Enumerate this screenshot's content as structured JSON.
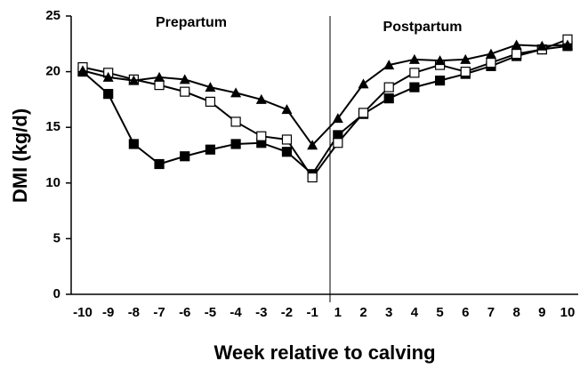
{
  "chart_data": {
    "type": "line",
    "x_label": "Week relative to calving",
    "y_label": "DMI (kg/d)",
    "annotations": [
      "Prepartum",
      "Postpartum"
    ],
    "categories": [
      "-10",
      "-9",
      "-8",
      "-7",
      "-6",
      "-5",
      "-4",
      "-3",
      "-2",
      "-1",
      "1",
      "2",
      "3",
      "4",
      "5",
      "6",
      "7",
      "8",
      "9",
      "10"
    ],
    "series": [
      {
        "color": "#000000",
        "marker": "square",
        "values": [
          20.0,
          18.0,
          13.5,
          11.7,
          12.4,
          13.0,
          13.5,
          13.6,
          12.8,
          10.8,
          14.3,
          16.2,
          17.6,
          18.6,
          19.2,
          19.8,
          20.5,
          21.4,
          22.0,
          22.3
        ]
      },
      {
        "color": "#000000",
        "marker": "square-open",
        "values": [
          20.4,
          19.9,
          19.3,
          18.8,
          18.2,
          17.3,
          15.5,
          14.2,
          13.9,
          10.5,
          13.6,
          16.3,
          18.6,
          19.9,
          20.6,
          20.0,
          20.8,
          21.6,
          22.0,
          22.9
        ]
      },
      {
        "color": "#000000",
        "marker": "triangle",
        "values": [
          20.1,
          19.5,
          19.2,
          19.5,
          19.3,
          18.6,
          18.1,
          17.5,
          16.6,
          13.4,
          15.8,
          18.9,
          20.6,
          21.1,
          21.0,
          21.1,
          21.6,
          22.4,
          22.3,
          22.4
        ]
      }
    ],
    "ylim": [
      0,
      25
    ],
    "yticks": [
      0,
      5,
      10,
      15,
      20,
      25
    ],
    "grid": false
  }
}
